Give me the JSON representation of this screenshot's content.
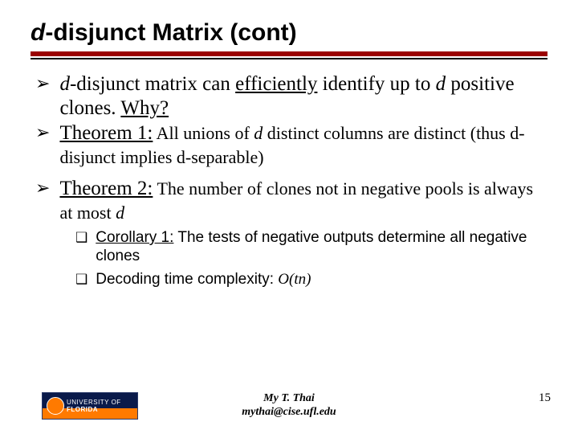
{
  "title": {
    "prefix_italic": "d",
    "rest": "-disjunct Matrix (cont)"
  },
  "bullets": {
    "b1": {
      "d1": "d",
      "t1": "-disjunct matrix can ",
      "eff": "efficiently",
      "t2": " identify up to ",
      "d2": "d",
      "t3": " positive clones. ",
      "why": "Why?"
    },
    "b2": {
      "head": "Theorem 1:",
      "t1": " All unions of ",
      "d": "d",
      "t2": " distinct columns are distinct (thus d-disjunct implies d-separable)"
    },
    "b3": {
      "head": "Theorem 2:",
      "t1": " The number of clones not in negative pools is always at most ",
      "d": "d"
    },
    "c1": {
      "head": "Corollary 1:",
      "t": " The tests of negative outputs determine all negative clones"
    },
    "c2": {
      "t1": "Decoding time complexity: ",
      "o": "O(tn)"
    }
  },
  "footer": {
    "logo_top": "UNIVERSITY OF",
    "logo_bottom": "FLORIDA",
    "author_name": "My T. Thai",
    "author_email": "mythai@cise.ufl.edu",
    "page": "15"
  },
  "colors": {
    "rule": "#9a0000",
    "text": "#000000",
    "logo_blue": "#0a1a4a",
    "logo_orange": "#ff7a00"
  }
}
